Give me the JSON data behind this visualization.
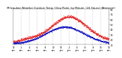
{
  "title": "Milwaukee Weather Outdoor Temp / Dew Point  by Minute  (24 Hours) (Alternate)",
  "bg_color": "#ffffff",
  "temp_color": "#dd0000",
  "dew_color": "#0000bb",
  "grid_color": "#888888",
  "ylim": [
    10,
    80
  ],
  "xlim": [
    0,
    1440
  ],
  "yticks": [
    10,
    20,
    30,
    40,
    50,
    60,
    70,
    80
  ],
  "title_fontsize": 2.8,
  "tick_fontsize": 2.5,
  "dot_size": 0.15,
  "noise_temp": 1.5,
  "noise_dew": 1.0,
  "peak_temp_min": 840,
  "peak_temp_val": 65,
  "base_temp": 22,
  "peak_dew_min": 780,
  "peak_dew_val": 45,
  "base_dew": 12
}
